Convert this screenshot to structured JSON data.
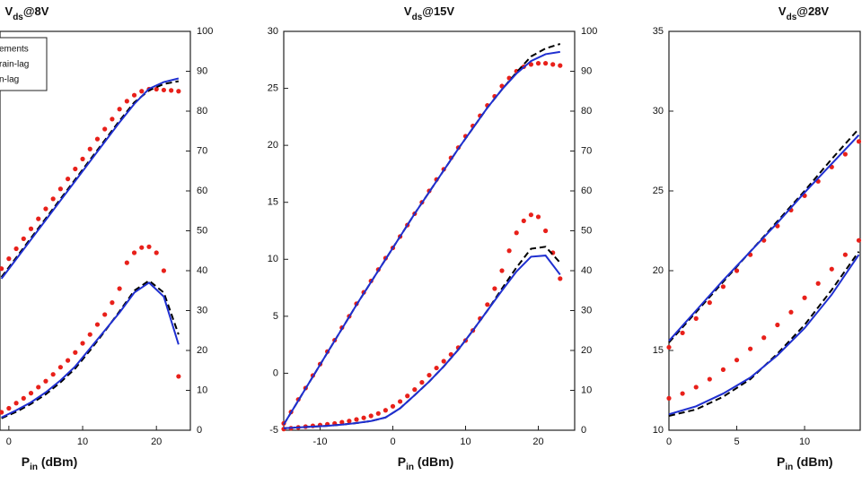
{
  "chart_data": [
    {
      "type": "line",
      "title": {
        "base": "V",
        "sub": "ds",
        "tail": "@8V"
      },
      "xlabel": {
        "base": "P",
        "sub": "in",
        "tail": " (dBm)"
      },
      "xlim": [
        -1.2,
        24.6
      ],
      "xticks": [
        0,
        10,
        20
      ],
      "y2lim": [
        0,
        100
      ],
      "y2ticks": [
        0,
        10,
        20,
        30,
        40,
        50,
        60,
        70,
        80,
        90,
        100
      ],
      "legend": "upper left",
      "series": [
        {
          "name": "ements",
          "style": "dots",
          "color": "#e8201a",
          "axis": "y2",
          "x": [
            -1,
            0,
            1,
            2,
            3,
            4,
            5,
            6,
            7,
            8,
            9,
            10,
            11,
            12,
            13,
            14,
            15,
            16,
            17,
            18,
            19,
            20,
            21,
            22,
            23
          ],
          "values": [
            40.5,
            43,
            45.5,
            48,
            50.5,
            53,
            55.5,
            58,
            60.5,
            63,
            65.5,
            68,
            70.5,
            73,
            75.5,
            78,
            80.5,
            82.5,
            84,
            85,
            85.5,
            85.5,
            85.3,
            85.2,
            85
          ]
        },
        {
          "name": "rain-lag",
          "style": "dashed",
          "color": "#000000",
          "axis": "y2",
          "x": [
            -1,
            1,
            3,
            5,
            7,
            9,
            11,
            13,
            15,
            17,
            19,
            21,
            23
          ],
          "values": [
            38.4,
            43.3,
            48.2,
            53.1,
            58,
            62.9,
            67.8,
            72.7,
            77.6,
            82.2,
            85.2,
            86.8,
            87.5
          ]
        },
        {
          "name": "n-lag",
          "style": "solid",
          "color": "#1f2fd0",
          "axis": "y2",
          "x": [
            -1,
            1,
            3,
            5,
            7,
            9,
            11,
            13,
            15,
            17,
            19,
            21,
            23
          ],
          "values": [
            38,
            42.9,
            47.8,
            52.7,
            57.6,
            62.5,
            67.4,
            72.3,
            77.2,
            81.8,
            85.6,
            87.3,
            88.2
          ]
        },
        {
          "style": "dots",
          "color": "#e8201a",
          "axis": "y2",
          "x": [
            -1,
            0,
            1,
            2,
            3,
            4,
            5,
            6,
            7,
            8,
            9,
            10,
            11,
            12,
            13,
            14,
            15,
            16,
            17,
            18,
            19,
            20,
            21,
            23
          ],
          "values": [
            4.5,
            5.5,
            6.8,
            8,
            9.3,
            10.8,
            12.3,
            14,
            15.8,
            17.5,
            19.5,
            21.8,
            24,
            26.5,
            29,
            32,
            35.5,
            42,
            44.5,
            45.8,
            46,
            44.5,
            40,
            13.5
          ]
        },
        {
          "style": "dashed",
          "color": "#000000",
          "axis": "y2",
          "x": [
            -1,
            1,
            3,
            5,
            7,
            9,
            11,
            13,
            15,
            17,
            19,
            21,
            23
          ],
          "values": [
            3,
            4.6,
            6.6,
            9,
            12,
            15.5,
            20,
            24.8,
            29.8,
            35,
            37.5,
            34.5,
            24
          ]
        },
        {
          "style": "solid",
          "color": "#1f2fd0",
          "axis": "y2",
          "x": [
            -1,
            1,
            3,
            5,
            7,
            9,
            11,
            13,
            15,
            17,
            19,
            21,
            23
          ],
          "values": [
            3.2,
            5,
            7,
            9.5,
            12.5,
            16,
            20.5,
            25,
            29.5,
            34.5,
            37,
            33.5,
            21.5
          ]
        }
      ]
    },
    {
      "type": "line",
      "title": {
        "base": "V",
        "sub": "ds",
        "tail": "@15V"
      },
      "xlabel": {
        "base": "P",
        "sub": "in",
        "tail": " (dBm)"
      },
      "xlim": [
        -15,
        25
      ],
      "xticks": [
        -10,
        0,
        10,
        20
      ],
      "ylim": [
        -5,
        30
      ],
      "yticks": [
        -5,
        0,
        5,
        10,
        15,
        20,
        25,
        30
      ],
      "y2lim": [
        0,
        100
      ],
      "y2ticks": [
        0,
        10,
        20,
        30,
        40,
        50,
        60,
        70,
        80,
        90,
        100
      ],
      "series": [
        {
          "style": "dots",
          "color": "#e8201a",
          "axis": "y",
          "x": [
            -15,
            -14,
            -13,
            -12,
            -11,
            -10,
            -9,
            -8,
            -7,
            -6,
            -5,
            -4,
            -3,
            -2,
            -1,
            0,
            1,
            2,
            3,
            4,
            5,
            6,
            7,
            8,
            9,
            10,
            11,
            12,
            13,
            14,
            15,
            16,
            17,
            18,
            19,
            20,
            21,
            22,
            23
          ],
          "values": [
            -4.4,
            -3.4,
            -2.3,
            -1.3,
            -0.2,
            0.8,
            1.9,
            2.9,
            4,
            5,
            6.1,
            7.1,
            8.1,
            9.1,
            10.1,
            11,
            12,
            13,
            14,
            15,
            16,
            17,
            17.9,
            18.9,
            19.8,
            20.8,
            21.7,
            22.6,
            23.5,
            24.3,
            25.2,
            25.9,
            26.5,
            26.9,
            27.1,
            27.2,
            27.2,
            27.1,
            27
          ]
        },
        {
          "style": "dashed",
          "color": "#000000",
          "axis": "y",
          "x": [
            -15,
            -13,
            -11,
            -9,
            -7,
            -5,
            -3,
            -1,
            1,
            3,
            5,
            7,
            9,
            11,
            13,
            15,
            17,
            19,
            21,
            23
          ],
          "values": [
            -4.5,
            -2.4,
            -0.3,
            1.8,
            3.9,
            6,
            8,
            10,
            12,
            14,
            15.9,
            17.8,
            19.7,
            21.5,
            23.3,
            24.9,
            26.4,
            27.8,
            28.5,
            28.9
          ]
        },
        {
          "style": "solid",
          "color": "#1f2fd0",
          "axis": "y",
          "x": [
            -15,
            -13,
            -11,
            -9,
            -7,
            -5,
            -3,
            -1,
            1,
            3,
            5,
            7,
            9,
            11,
            13,
            15,
            17,
            19,
            21,
            23
          ],
          "values": [
            -4.5,
            -2.4,
            -0.3,
            1.8,
            3.9,
            6,
            8,
            10,
            12,
            14,
            15.9,
            17.8,
            19.7,
            21.5,
            23.3,
            24.9,
            26.3,
            27.4,
            28,
            28.2
          ]
        },
        {
          "style": "dots",
          "color": "#e8201a",
          "axis": "y2",
          "x": [
            -15,
            -14,
            -13,
            -12,
            -11,
            -10,
            -9,
            -8,
            -7,
            -6,
            -5,
            -4,
            -3,
            -2,
            -1,
            0,
            1,
            2,
            3,
            4,
            5,
            6,
            7,
            8,
            9,
            10,
            11,
            12,
            13,
            14,
            15,
            16,
            17,
            18,
            19,
            20,
            21,
            22,
            23
          ],
          "values": [
            0.3,
            0.5,
            0.7,
            0.9,
            1.1,
            1.3,
            1.5,
            1.7,
            2,
            2.3,
            2.7,
            3.1,
            3.6,
            4.2,
            5,
            6,
            7.2,
            8.6,
            10.2,
            12,
            13.8,
            15.6,
            17.3,
            19,
            20.7,
            22.5,
            25,
            28,
            31.5,
            35.5,
            40,
            45,
            49.5,
            52.5,
            54,
            53.5,
            50,
            44.5,
            38
          ]
        },
        {
          "style": "dashed",
          "color": "#000000",
          "axis": "y2",
          "x": [
            -15,
            -13,
            -11,
            -9,
            -7,
            -5,
            -3,
            -1,
            1,
            3,
            5,
            7,
            9,
            11,
            13,
            15,
            17,
            19,
            21,
            23
          ],
          "values": [
            0.5,
            0.7,
            0.9,
            1.1,
            1.4,
            1.8,
            2.3,
            3.2,
            5.5,
            8.8,
            12.2,
            16,
            20.2,
            25,
            30,
            35.5,
            40.8,
            45.5,
            46,
            42
          ]
        },
        {
          "style": "solid",
          "color": "#1f2fd0",
          "axis": "y2",
          "x": [
            -15,
            -13,
            -11,
            -9,
            -7,
            -5,
            -3,
            -1,
            1,
            3,
            5,
            7,
            9,
            11,
            13,
            15,
            17,
            19,
            21,
            23
          ],
          "values": [
            0.5,
            0.7,
            0.9,
            1.1,
            1.4,
            1.8,
            2.3,
            3.2,
            5.5,
            8.8,
            12.2,
            16,
            20.2,
            25,
            30,
            35,
            39.8,
            43.5,
            43.8,
            39
          ]
        }
      ]
    },
    {
      "type": "line",
      "title": {
        "base": "V",
        "sub": "ds",
        "tail": "@28V"
      },
      "xlabel": {
        "base": "P",
        "sub": "in",
        "tail": " (dBm)"
      },
      "xlim": [
        0,
        14.1
      ],
      "xticks": [
        0,
        5,
        10
      ],
      "ylim": [
        10,
        35
      ],
      "yticks": [
        10,
        15,
        20,
        25,
        30,
        35
      ],
      "series": [
        {
          "style": "dots",
          "color": "#e8201a",
          "axis": "y",
          "x": [
            0,
            1,
            2,
            3,
            4,
            5,
            6,
            7,
            8,
            9,
            10,
            11,
            12,
            13,
            14
          ],
          "values": [
            15.2,
            16.1,
            17,
            18,
            19,
            20,
            21,
            21.9,
            22.8,
            23.8,
            24.7,
            25.6,
            26.5,
            27.3,
            28.1
          ]
        },
        {
          "style": "dashed",
          "color": "#000000",
          "axis": "y",
          "x": [
            0,
            2,
            4,
            6,
            8,
            10,
            12,
            14
          ],
          "values": [
            15.5,
            17.4,
            19.3,
            21.2,
            23.1,
            25,
            27,
            28.9
          ]
        },
        {
          "style": "solid",
          "color": "#1f2fd0",
          "axis": "y",
          "x": [
            0,
            2,
            4,
            6,
            8,
            10,
            12,
            14
          ],
          "values": [
            15.6,
            17.5,
            19.4,
            21.2,
            23,
            24.9,
            26.7,
            28.5
          ]
        },
        {
          "style": "dots",
          "color": "#e8201a",
          "axis": "y",
          "x": [
            0,
            1,
            2,
            3,
            4,
            5,
            6,
            7,
            8,
            9,
            10,
            11,
            12,
            13,
            14
          ],
          "values": [
            12,
            12.3,
            12.7,
            13.2,
            13.8,
            14.4,
            15.1,
            15.8,
            16.6,
            17.4,
            18.3,
            19.2,
            20.1,
            21,
            21.9
          ]
        },
        {
          "style": "dashed",
          "color": "#000000",
          "axis": "y",
          "x": [
            0,
            2,
            4,
            6,
            8,
            10,
            12,
            14
          ],
          "values": [
            10.9,
            11.3,
            12.1,
            13.2,
            14.8,
            16.6,
            18.8,
            21.2
          ]
        },
        {
          "style": "solid",
          "color": "#1f2fd0",
          "axis": "y",
          "x": [
            0,
            2,
            4,
            6,
            8,
            10,
            12,
            14
          ],
          "values": [
            11,
            11.5,
            12.3,
            13.3,
            14.7,
            16.4,
            18.5,
            21
          ]
        }
      ]
    }
  ]
}
